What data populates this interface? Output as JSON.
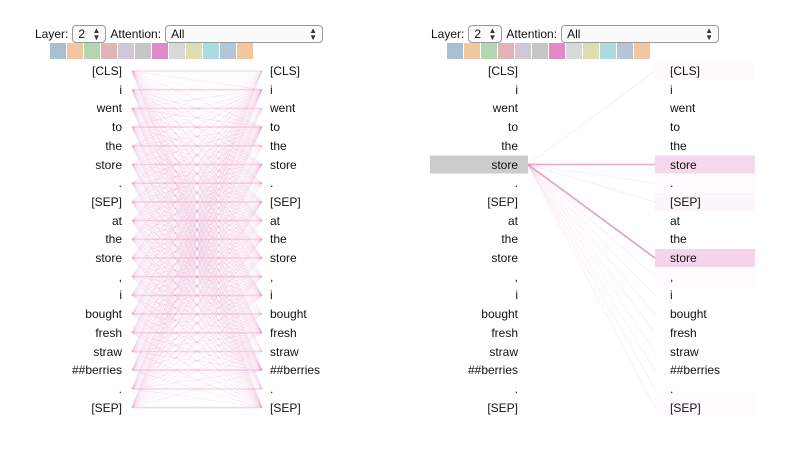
{
  "left_panel": {
    "layer_label": "Layer:",
    "layer_value": "2",
    "attention_label": "Attention:",
    "attention_value": "All",
    "head_colors": [
      "#a9c0d2",
      "#f2c7a0",
      "#b3d6b0",
      "#e2b4b8",
      "#d0c8d6",
      "#c6c6c6",
      "#e18ac7",
      "#d9d9d9",
      "#dedeb2",
      "#a9dbe1",
      "#b4c6d6",
      "#f2c7a0"
    ]
  },
  "right_panel": {
    "layer_label": "Layer:",
    "layer_value": "2",
    "attention_label": "Attention:",
    "attention_value": "All",
    "head_colors": [
      "#a9c0d2",
      "#f2c7a0",
      "#b3d6b0",
      "#e2b4b8",
      "#d0c8d6",
      "#c6c6c6",
      "#e18ac7",
      "#d9d9d9",
      "#dedeb2",
      "#a9dbe1",
      "#b4c6d6",
      "#f2c7a0"
    ],
    "selected_token": "store",
    "highlight_color": "#cccccc",
    "attention_color": "#e8a0d0"
  },
  "tokens": [
    "[CLS]",
    "i",
    "went",
    "to",
    "the",
    "store",
    ".",
    "[SEP]",
    "at",
    "the",
    "store",
    ",",
    "i",
    "bought",
    "fresh",
    "straw",
    "##berries",
    ".",
    "[SEP]"
  ],
  "icons": {
    "select_arrows": "updown-arrows-icon"
  }
}
